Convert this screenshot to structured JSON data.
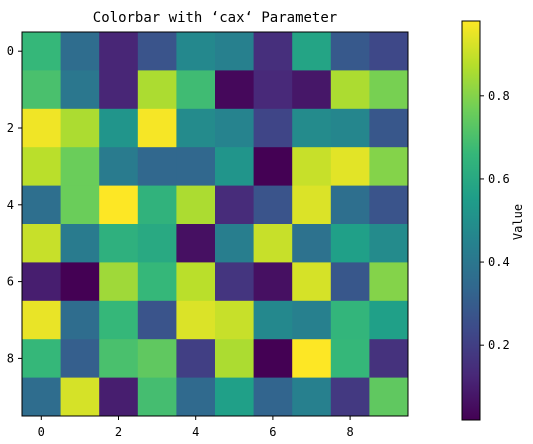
{
  "chart_data": {
    "type": "heatmap",
    "title": "Colorbar with ‘cax‘ Parameter",
    "xlabel": "",
    "ylabel": "",
    "rows": 10,
    "cols": 10,
    "x_ticks": [
      0,
      2,
      4,
      6,
      8
    ],
    "y_ticks": [
      0,
      2,
      4,
      6,
      8
    ],
    "values": [
      [
        0.66,
        0.36,
        0.12,
        0.27,
        0.47,
        0.44,
        0.15,
        0.58,
        0.29,
        0.23
      ],
      [
        0.7,
        0.4,
        0.12,
        0.86,
        0.68,
        0.04,
        0.13,
        0.08,
        0.86,
        0.78
      ],
      [
        0.96,
        0.86,
        0.52,
        0.97,
        0.48,
        0.45,
        0.22,
        0.48,
        0.46,
        0.28
      ],
      [
        0.88,
        0.76,
        0.42,
        0.34,
        0.34,
        0.52,
        0.02,
        0.9,
        0.94,
        0.8
      ],
      [
        0.37,
        0.76,
        0.98,
        0.64,
        0.86,
        0.14,
        0.27,
        0.93,
        0.37,
        0.27
      ],
      [
        0.9,
        0.42,
        0.63,
        0.6,
        0.06,
        0.43,
        0.9,
        0.38,
        0.56,
        0.48
      ],
      [
        0.1,
        0.02,
        0.84,
        0.66,
        0.88,
        0.17,
        0.06,
        0.92,
        0.28,
        0.8
      ],
      [
        0.95,
        0.36,
        0.66,
        0.27,
        0.93,
        0.9,
        0.47,
        0.44,
        0.65,
        0.56
      ],
      [
        0.66,
        0.31,
        0.7,
        0.74,
        0.2,
        0.86,
        0.02,
        0.98,
        0.66,
        0.16
      ],
      [
        0.36,
        0.92,
        0.1,
        0.69,
        0.35,
        0.56,
        0.33,
        0.44,
        0.18,
        0.74
      ]
    ],
    "colormap": "viridis",
    "colorbar": {
      "label": "Value",
      "range": [
        0.02,
        0.98
      ],
      "ticks": [
        0.2,
        0.4,
        0.6,
        0.8
      ],
      "tick_labels": [
        "0.2",
        "0.4",
        "0.6",
        "0.8"
      ],
      "colors": [
        "#440154",
        "#482878",
        "#3e4989",
        "#31688e",
        "#26828e",
        "#1f9e89",
        "#35b779",
        "#6ece58",
        "#b5de2b",
        "#fde725"
      ]
    }
  }
}
